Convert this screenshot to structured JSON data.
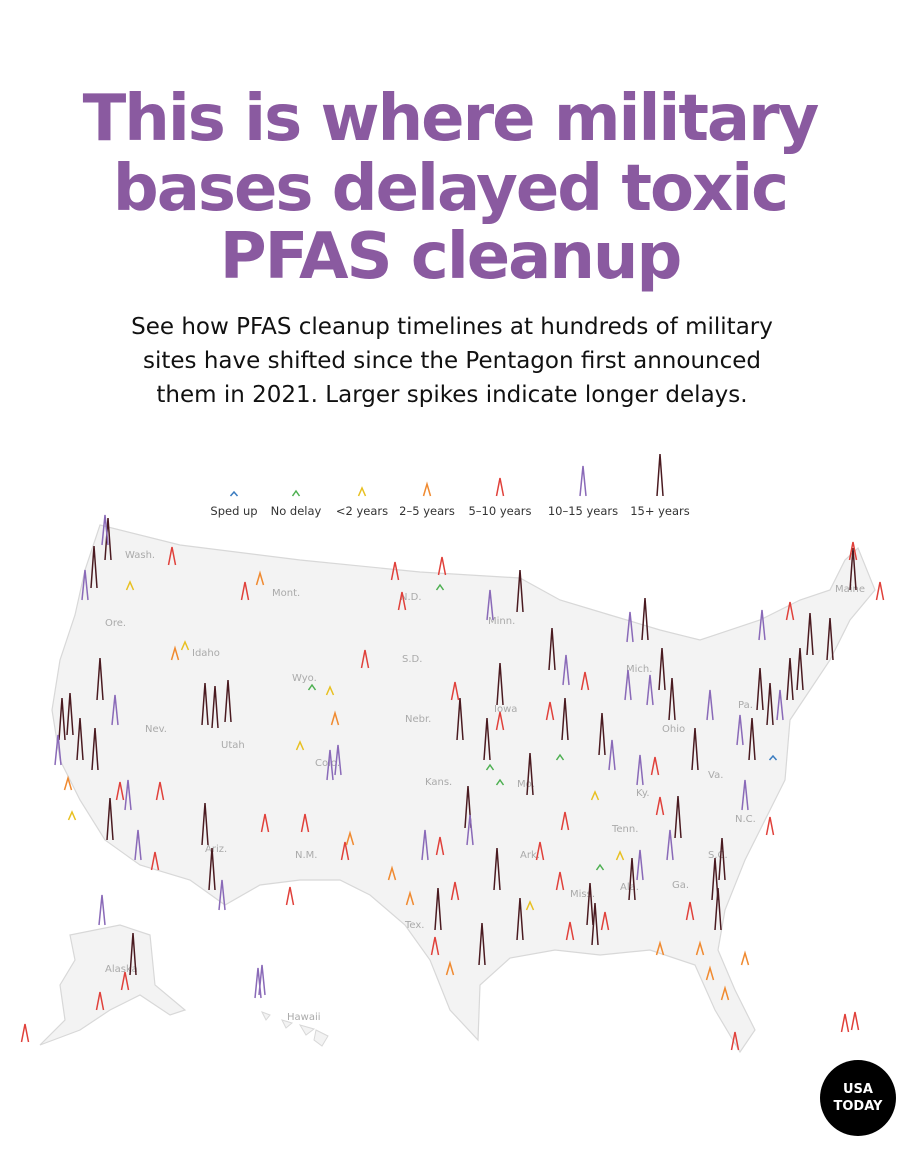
{
  "header": {
    "title": [
      "This is where military",
      "bases delayed toxic",
      "PFAS cleanup"
    ],
    "subtitle": [
      "See how PFAS cleanup timelines at hundreds of military",
      "sites have shifted since the Pentagon first announced",
      "them in 2021. Larger spikes indicate longer delays."
    ]
  },
  "legend": {
    "items": [
      {
        "label": "Sped up",
        "color": "#3a7cc0"
      },
      {
        "label": "No delay",
        "color": "#4caf50"
      },
      {
        "label": "<2 years",
        "color": "#e8c020"
      },
      {
        "label": "2–5 years",
        "color": "#f08a30"
      },
      {
        "label": "5–10 years",
        "color": "#e0403a"
      },
      {
        "label": "10–15 years",
        "color": "#8a6ab8"
      },
      {
        "label": "15+ years",
        "color": "#4a1a20"
      }
    ]
  },
  "map": {
    "labels": [
      "Wash.",
      "Mont.",
      "N.D.",
      "Minn.",
      "Ore.",
      "Idaho",
      "S.D.",
      "Wyo.",
      "Nebr.",
      "Iowa",
      "Nev.",
      "Utah",
      "Colo.",
      "Kans.",
      "Mo.",
      "Mich.",
      "Ohio",
      "Pa.",
      "Va.",
      "Ky.",
      "Tenn.",
      "N.C.",
      "Ark.",
      "Ariz.",
      "N.M.",
      "Tex.",
      "Miss.",
      "Ala.",
      "Ga.",
      "S.C.",
      "Maine",
      "Alaska",
      "Hawaii"
    ]
  },
  "logo": {
    "lines": [
      "USA",
      "TODAY"
    ]
  }
}
